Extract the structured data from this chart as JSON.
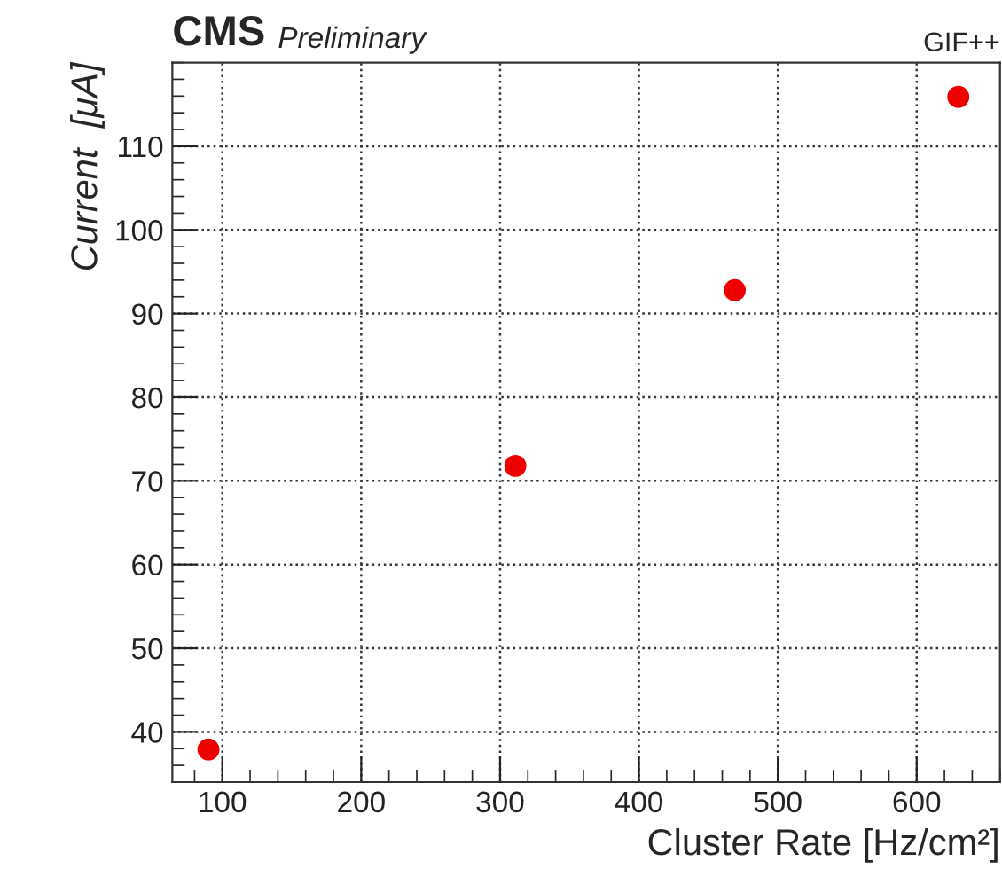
{
  "chart_data": {
    "type": "scatter",
    "title": "CMS",
    "subtitle": "Preliminary",
    "annotations": [
      "GIF++"
    ],
    "xlabel": "Cluster Rate [Hz/cm²]",
    "ylabel": "Current  [μA]",
    "x": [
      90,
      311,
      469,
      630
    ],
    "series": [
      {
        "color": "#ee0000",
        "values": [
          37.9,
          71.8,
          92.8,
          115.9
        ]
      }
    ],
    "marker": "circle",
    "grid": true,
    "xlim": [
      64,
      660
    ],
    "xticks": [
      100,
      200,
      300,
      400,
      500,
      600
    ],
    "ylim": [
      34,
      120
    ],
    "yticks": [
      40,
      50,
      60,
      70,
      80,
      90,
      100,
      110
    ]
  }
}
